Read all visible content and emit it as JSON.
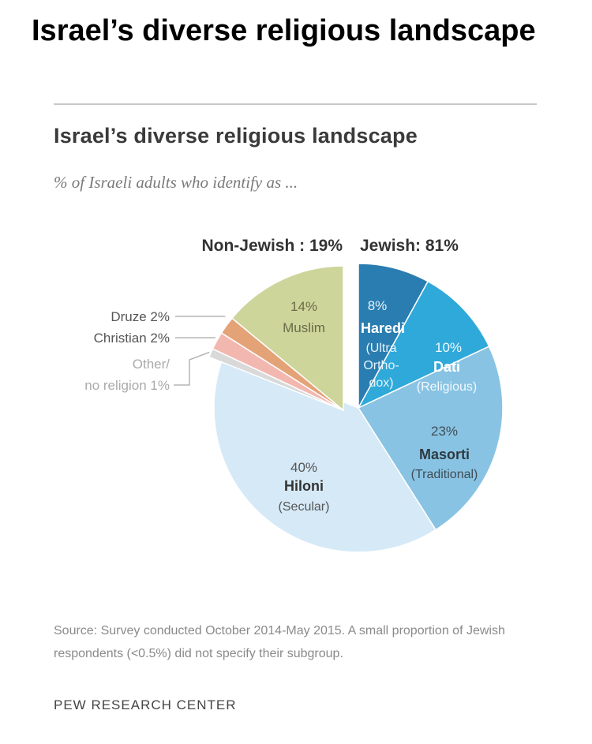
{
  "page_title": "Israel’s diverse religious landscape",
  "chart_data": {
    "type": "pie",
    "title": "Israel’s diverse religious landscape",
    "subtitle": "% of Israeli adults who identify as ...",
    "groups": [
      {
        "label": "Non-Jewish : 19%",
        "value": 19
      },
      {
        "label": "Jewish: 81%",
        "value": 81
      }
    ],
    "slices": [
      {
        "group": "Jewish",
        "value": 8,
        "pct_label": "8%",
        "name": "Haredi",
        "detail": [
          "(Ultra",
          "Ortho-",
          "dox)"
        ],
        "color": "#2a7db0"
      },
      {
        "group": "Jewish",
        "value": 10,
        "pct_label": "10%",
        "name": "Dati",
        "detail": [
          "(Religious)"
        ],
        "color": "#2fa9d9"
      },
      {
        "group": "Jewish",
        "value": 23,
        "pct_label": "23%",
        "name": "Masorti",
        "detail": [
          "(Traditional)"
        ],
        "color": "#89c3e3"
      },
      {
        "group": "Jewish",
        "value": 40,
        "pct_label": "40%",
        "name": "Hiloni",
        "detail": [
          "(Secular)"
        ],
        "color": "#d6e9f7"
      },
      {
        "group": "Non-Jewish",
        "value": 1,
        "name": "Other/ no religion 1%",
        "callout": [
          "Other/",
          "no religion 1%"
        ],
        "color": "#d9d9d9"
      },
      {
        "group": "Non-Jewish",
        "value": 2,
        "name": "Christian 2%",
        "callout": [
          "Christian 2%"
        ],
        "color": "#f2b8b0"
      },
      {
        "group": "Non-Jewish",
        "value": 2,
        "name": "Druze 2%",
        "callout": [
          "Druze 2%"
        ],
        "color": "#e4a277"
      },
      {
        "group": "Non-Jewish",
        "value": 14,
        "pct_label": "14%",
        "name": "Muslim",
        "color": "#cdd59b"
      }
    ]
  },
  "source_note": "Source: Survey conducted October 2014-May 2015. A small proportion of Jewish respondents (<0.5%) did not specify their subgroup.",
  "org": "PEW RESEARCH CENTER"
}
